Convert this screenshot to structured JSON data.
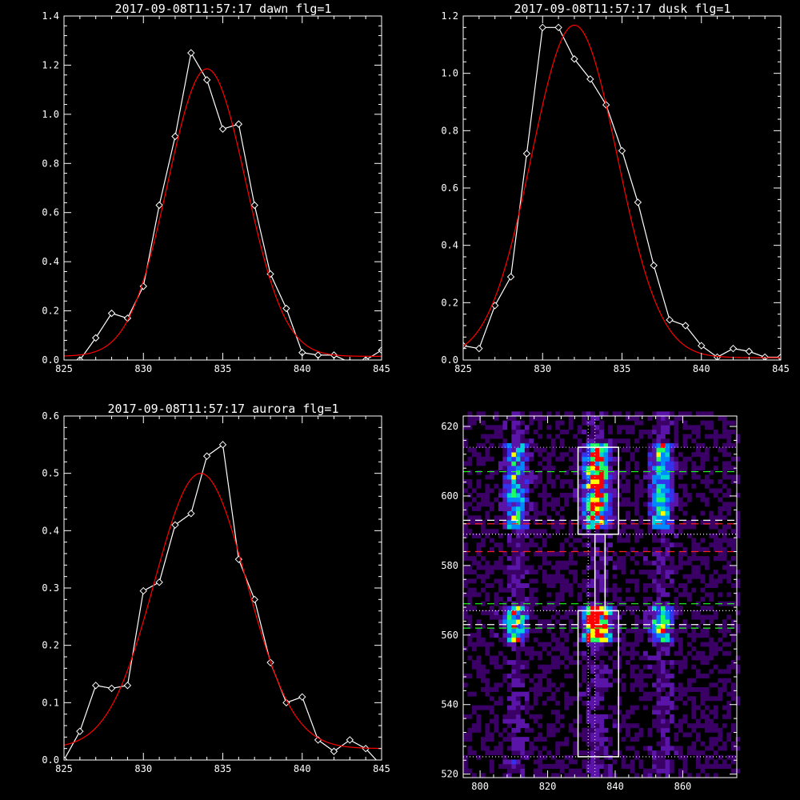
{
  "figure": {
    "background": "#000000",
    "axis_color": "#ffffff",
    "data_color": "#ffffff",
    "fit_color": "#ff0000"
  },
  "chart_data": [
    {
      "id": "dawn",
      "type": "line",
      "title": "2017-09-08T11:57:17 dawn flg=1",
      "xlim": [
        825,
        845
      ],
      "ylim": [
        0,
        1.4
      ],
      "x_ticks": [
        825,
        830,
        835,
        840,
        845
      ],
      "y_ticks": [
        0.0,
        0.2,
        0.4,
        0.6,
        0.8,
        1.0,
        1.2,
        1.4
      ],
      "x_tick_labels": [
        "825",
        "830",
        "835",
        "840",
        "845"
      ],
      "y_tick_labels": [
        "0.0",
        "0.2",
        "0.4",
        "0.6",
        "0.8",
        "1.0",
        "1.2",
        "1.4"
      ],
      "series": [
        {
          "style": "line-diamonds",
          "color": "#ffffff",
          "x": [
            825,
            826,
            827,
            828,
            829,
            830,
            831,
            832,
            833,
            834,
            835,
            836,
            837,
            838,
            839,
            840,
            841,
            842,
            843,
            844,
            845
          ],
          "y": [
            -0.03,
            0.0,
            0.09,
            0.19,
            0.17,
            0.3,
            0.63,
            0.91,
            1.25,
            1.14,
            0.94,
            0.96,
            0.63,
            0.35,
            0.21,
            0.03,
            0.02,
            0.02,
            -0.01,
            0.0,
            0.04
          ]
        },
        {
          "style": "gaussian-fit",
          "color": "#ff0000",
          "amplitude": 1.17,
          "center": 834.0,
          "sigma": 2.45,
          "offset": 0.015
        }
      ]
    },
    {
      "id": "dusk",
      "type": "line",
      "title": "2017-09-08T11:57:17 dusk flg=1",
      "xlim": [
        825,
        845
      ],
      "ylim": [
        0,
        1.2
      ],
      "x_ticks": [
        825,
        830,
        835,
        840,
        845
      ],
      "y_ticks": [
        0.0,
        0.2,
        0.4,
        0.6,
        0.8,
        1.0,
        1.2
      ],
      "x_tick_labels": [
        "825",
        "830",
        "835",
        "840",
        "845"
      ],
      "y_tick_labels": [
        "0.0",
        "0.2",
        "0.4",
        "0.6",
        "0.8",
        "1.0",
        "1.2"
      ],
      "series": [
        {
          "style": "line-diamonds",
          "color": "#ffffff",
          "x": [
            825,
            826,
            827,
            828,
            829,
            830,
            831,
            832,
            833,
            834,
            835,
            836,
            837,
            838,
            839,
            840,
            841,
            842,
            843,
            844,
            845
          ],
          "y": [
            0.05,
            0.04,
            0.19,
            0.29,
            0.72,
            1.16,
            1.16,
            1.05,
            0.98,
            0.89,
            0.73,
            0.55,
            0.33,
            0.14,
            0.12,
            0.05,
            0.01,
            0.04,
            0.03,
            0.01,
            0.01
          ]
        },
        {
          "style": "gaussian-fit",
          "color": "#ff0000",
          "amplitude": 1.16,
          "center": 832.0,
          "sigma": 2.7,
          "offset": 0.008
        }
      ]
    },
    {
      "id": "aurora",
      "type": "line",
      "title": "2017-09-08T11:57:17 aurora flg=1",
      "xlim": [
        825,
        845
      ],
      "ylim": [
        0,
        0.6
      ],
      "x_ticks": [
        825,
        830,
        835,
        840,
        845
      ],
      "y_ticks": [
        0.0,
        0.1,
        0.2,
        0.3,
        0.4,
        0.5,
        0.6
      ],
      "x_tick_labels": [
        "825",
        "830",
        "835",
        "840",
        "845"
      ],
      "y_tick_labels": [
        "0.0",
        "0.1",
        "0.2",
        "0.3",
        "0.4",
        "0.5",
        "0.6"
      ],
      "series": [
        {
          "style": "line-diamonds",
          "color": "#ffffff",
          "x": [
            825,
            826,
            827,
            828,
            829,
            830,
            831,
            832,
            833,
            834,
            835,
            836,
            837,
            838,
            839,
            840,
            841,
            842,
            843,
            844,
            845
          ],
          "y": [
            0.0,
            0.05,
            0.13,
            0.125,
            0.13,
            0.295,
            0.31,
            0.41,
            0.43,
            0.53,
            0.55,
            0.35,
            0.28,
            0.17,
            0.1,
            0.11,
            0.035,
            0.015,
            0.035,
            0.02,
            -0.01
          ]
        },
        {
          "style": "gaussian-fit",
          "color": "#ff0000",
          "amplitude": 0.48,
          "center": 833.6,
          "sigma": 2.9,
          "offset": 0.02
        }
      ]
    },
    {
      "id": "image",
      "type": "heatmap",
      "xlim": [
        795,
        876
      ],
      "ylim": [
        519,
        623
      ],
      "x_ticks": [
        800,
        820,
        840,
        860
      ],
      "y_ticks": [
        520,
        540,
        560,
        580,
        600,
        620
      ],
      "x_tick_labels": [
        "800",
        "820",
        "840",
        "860"
      ],
      "y_tick_labels": [
        "520",
        "540",
        "560",
        "580",
        "600",
        "620"
      ],
      "colorscale": [
        "#000000",
        "#3a0066",
        "#5a14a8",
        "#3333ee",
        "#0088ff",
        "#00d4d4",
        "#20ff60",
        "#ffff00",
        "#ff0000"
      ],
      "emission_columns": [
        {
          "x_center": 810,
          "x_width": 6
        },
        {
          "x_center": 834,
          "x_width": 7
        },
        {
          "x_center": 853,
          "x_width": 6
        }
      ],
      "emission_bands": [
        {
          "y_min": 590,
          "y_max": 614,
          "strength": 1.0
        },
        {
          "y_min": 557,
          "y_max": 568,
          "strength": 1.3
        }
      ],
      "boxes": [
        {
          "x": [
            829,
            841
          ],
          "y": [
            589,
            614
          ],
          "color": "#ffffff"
        },
        {
          "x": [
            834,
            837
          ],
          "y": [
            567,
            589
          ],
          "color": "#ffffff"
        },
        {
          "x": [
            829,
            841
          ],
          "y": [
            525,
            567
          ],
          "color": "#ffffff"
        }
      ],
      "horizontal_lines": [
        {
          "y": 614,
          "color": "#20ff20",
          "style": "dotted"
        },
        {
          "y": 607,
          "color": "#20ff20",
          "style": "dashed"
        },
        {
          "y": 593,
          "color": "#ffffff",
          "style": "dashed"
        },
        {
          "y": 592,
          "color": "#ff2020",
          "style": "dashed"
        },
        {
          "y": 589,
          "color": "#ffffff",
          "style": "dotted"
        },
        {
          "y": 584,
          "color": "#ff2020",
          "style": "dashed"
        },
        {
          "y": 569,
          "color": "#20ff20",
          "style": "dashed"
        },
        {
          "y": 567,
          "color": "#ffffff",
          "style": "dotted"
        },
        {
          "y": 563,
          "color": "#ffffff",
          "style": "dashed"
        },
        {
          "y": 562,
          "color": "#20ff20",
          "style": "dashed"
        },
        {
          "y": 525,
          "color": "#ffffff",
          "style": "dotted"
        }
      ],
      "vertical_lines": [
        {
          "x": 832,
          "color": "#ffffff",
          "style": "dotted"
        },
        {
          "x": 834,
          "color": "#ffffff",
          "style": "dotted"
        }
      ]
    }
  ]
}
